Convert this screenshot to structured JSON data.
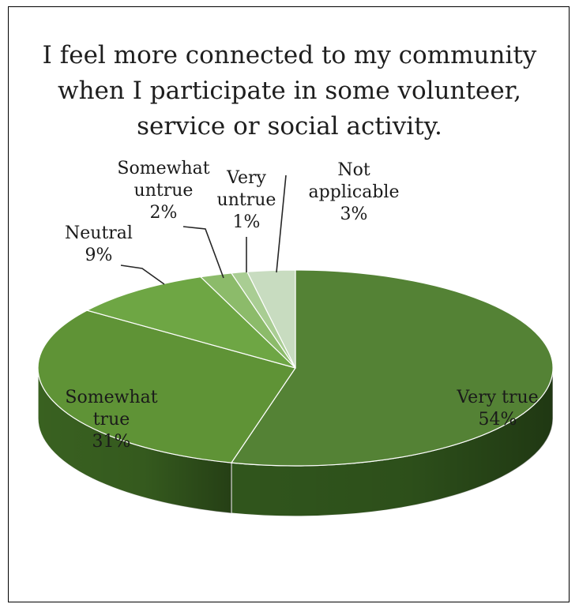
{
  "chart_data": {
    "type": "pie",
    "title_lines": [
      "I feel more connected to my community",
      "when I participate in some volunteer,",
      "service or social activity."
    ],
    "slices": [
      {
        "label_lines": [
          "Very true"
        ],
        "pct_label": "54%",
        "value": 54,
        "color": "#548235",
        "side_color": "#335a1e"
      },
      {
        "label_lines": [
          "Somewhat",
          "true"
        ],
        "pct_label": "31%",
        "value": 31,
        "color": "#5f9336",
        "side_color": "#3c6622"
      },
      {
        "label_lines": [
          "Neutral"
        ],
        "pct_label": "9%",
        "value": 9,
        "color": "#6ea644",
        "side_color": "#4d7a2e"
      },
      {
        "label_lines": [
          "Somewhat",
          "untrue"
        ],
        "pct_label": "2%",
        "value": 2,
        "color": "#8cbb6a",
        "side_color": "#6a9450"
      },
      {
        "label_lines": [
          "Very",
          "untrue"
        ],
        "pct_label": "1%",
        "value": 1,
        "color": "#a9cd93",
        "side_color": "#86a872"
      },
      {
        "label_lines": [
          "Not",
          "applicable"
        ],
        "pct_label": "3%",
        "value": 3,
        "color": "#c8dcc0",
        "side_color": "#a5b89c"
      }
    ]
  }
}
